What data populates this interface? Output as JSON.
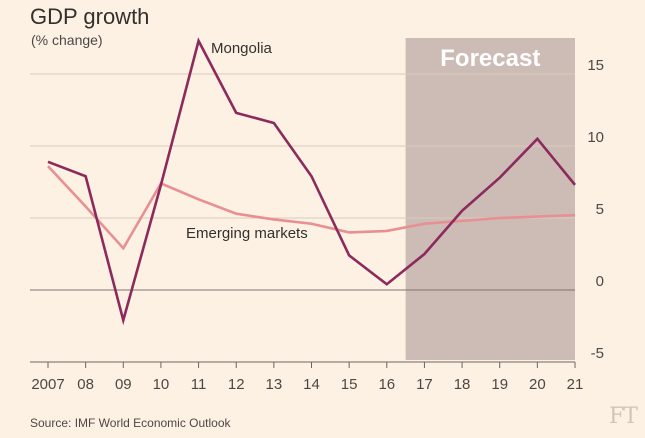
{
  "header": {
    "title": "GDP growth",
    "subtitle": "(% change)"
  },
  "footer": {
    "source": "Source: IMF World Economic Outlook",
    "logo": "FT"
  },
  "chart_data": {
    "type": "line",
    "title": "GDP growth",
    "ylabel": "(% change)",
    "xlabel": "",
    "x": [
      2007,
      2008,
      2009,
      2010,
      2011,
      2012,
      2013,
      2014,
      2015,
      2016,
      2017,
      2018,
      2019,
      2020,
      2021
    ],
    "tick_labels": [
      "2007",
      "08",
      "09",
      "10",
      "11",
      "12",
      "13",
      "14",
      "15",
      "16",
      "17",
      "18",
      "19",
      "20",
      "21"
    ],
    "ylim": [
      -5,
      17
    ],
    "yticks": [
      -5,
      0,
      5,
      10,
      15
    ],
    "ytick_labels": [
      "-5",
      "0",
      "5",
      "10",
      "15"
    ],
    "forecast": {
      "label": "Forecast",
      "from": 2016.5,
      "to": 2021
    },
    "series": [
      {
        "name": "Mongolia",
        "color": "#8c2a5c",
        "values": [
          8.9,
          7.9,
          -2.1,
          7.3,
          17.3,
          12.3,
          11.6,
          7.9,
          2.4,
          0.4,
          2.5,
          5.5,
          7.8,
          10.5,
          7.3
        ]
      },
      {
        "name": "Emerging markets",
        "color": "#e88f93",
        "values": [
          8.6,
          5.8,
          2.9,
          7.4,
          6.3,
          5.3,
          4.9,
          4.6,
          4.0,
          4.1,
          4.6,
          4.8,
          5.0,
          5.1,
          5.2
        ]
      }
    ]
  }
}
